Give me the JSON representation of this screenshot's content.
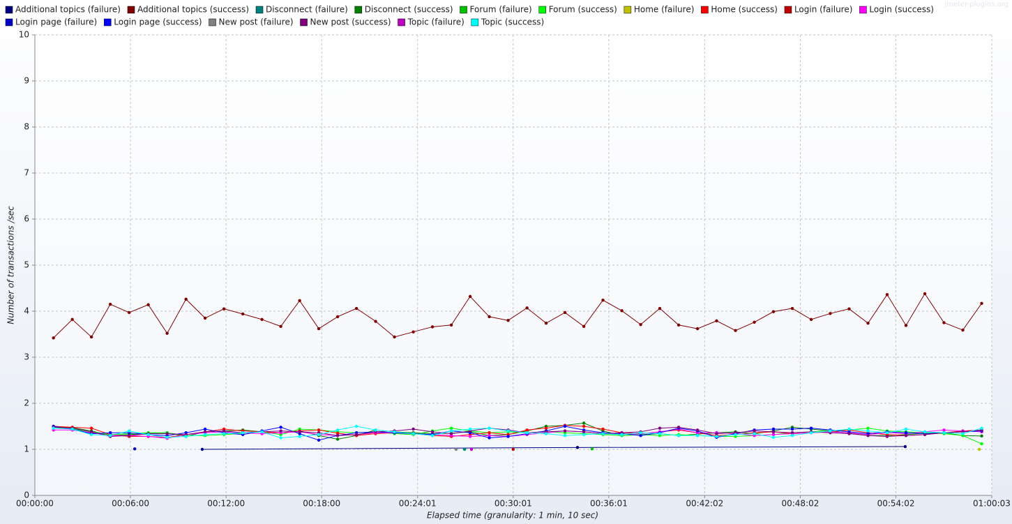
{
  "chart_data": {
    "type": "line",
    "watermark": "jmeter-plugins.org",
    "x_label": "Elapsed time (granularity: 1 min, 10 sec)",
    "y_label": "Number of transactions /sec",
    "xlim": [
      0,
      3603
    ],
    "ylim": [
      0,
      10
    ],
    "xticks": [
      {
        "value": 0,
        "label": "00:00:00"
      },
      {
        "value": 360,
        "label": "00:06:00"
      },
      {
        "value": 720,
        "label": "00:12:00"
      },
      {
        "value": 1080,
        "label": "00:18:00"
      },
      {
        "value": 1441,
        "label": "00:24:01"
      },
      {
        "value": 1801,
        "label": "00:30:01"
      },
      {
        "value": 2161,
        "label": "00:36:01"
      },
      {
        "value": 2522,
        "label": "00:42:02"
      },
      {
        "value": 2882,
        "label": "00:48:02"
      },
      {
        "value": 3242,
        "label": "00:54:02"
      },
      {
        "value": 3603,
        "label": "01:00:03"
      }
    ],
    "yticks": [
      0,
      1,
      2,
      3,
      4,
      5,
      6,
      7,
      8,
      9,
      10
    ],
    "grid": true,
    "x": [
      70,
      141,
      213,
      284,
      355,
      427,
      498,
      569,
      641,
      712,
      783,
      855,
      926,
      997,
      1069,
      1140,
      1211,
      1283,
      1354,
      1425,
      1497,
      1568,
      1639,
      1711,
      1782,
      1853,
      1925,
      1996,
      2067,
      2139,
      2210,
      2281,
      2353,
      2424,
      2495,
      2567,
      2638,
      2709,
      2781,
      2852,
      2923,
      2995,
      3066,
      3137,
      3209,
      3280,
      3351,
      3423,
      3494,
      3565
    ],
    "series": [
      {
        "name": "Additional topics (failure)",
        "color": "#00007f",
        "x": [
          630,
          2043,
          3277
        ],
        "values": [
          1.0,
          1.04,
          1.06
        ]
      },
      {
        "name": "Additional topics (success)",
        "color": "#7f0000",
        "values": [
          3.42,
          3.82,
          3.44,
          4.15,
          3.97,
          4.14,
          3.52,
          4.26,
          3.85,
          4.05,
          3.94,
          3.82,
          3.67,
          4.23,
          3.62,
          3.88,
          4.06,
          3.78,
          3.44,
          3.55,
          3.66,
          3.7,
          4.32,
          3.88,
          3.8,
          4.07,
          3.74,
          3.97,
          3.67,
          4.24,
          4.01,
          3.71,
          4.06,
          3.7,
          3.62,
          3.79,
          3.58,
          3.76,
          3.99,
          4.06,
          3.82,
          3.95,
          4.05,
          3.74,
          4.36,
          3.69,
          4.38,
          3.75,
          3.59,
          4.17
        ]
      },
      {
        "name": "Disconnect (failure)",
        "color": "#007f7f",
        "x": [
          1618
        ],
        "values": [
          1.0
        ]
      },
      {
        "name": "Disconnect (success)",
        "color": "#007f00",
        "values": [
          1.5,
          1.47,
          1.4,
          1.3,
          1.32,
          1.35,
          1.36,
          1.28,
          1.38,
          1.4,
          1.42,
          1.38,
          1.36,
          1.4,
          1.3,
          1.22,
          1.3,
          1.42,
          1.38,
          1.36,
          1.34,
          1.35,
          1.38,
          1.3,
          1.32,
          1.4,
          1.5,
          1.52,
          1.57,
          1.4,
          1.3,
          1.32,
          1.34,
          1.3,
          1.33,
          1.36,
          1.38,
          1.34,
          1.4,
          1.48,
          1.44,
          1.4,
          1.35,
          1.3,
          1.3,
          1.32,
          1.35,
          1.36,
          1.3,
          1.29
        ]
      },
      {
        "name": "Forum (failure)",
        "color": "#00c000",
        "x": [
          2098
        ],
        "values": [
          1.01
        ]
      },
      {
        "name": "Forum (success)",
        "color": "#00ff00",
        "values": [
          1.48,
          1.44,
          1.38,
          1.32,
          1.34,
          1.36,
          1.36,
          1.3,
          1.3,
          1.32,
          1.35,
          1.38,
          1.32,
          1.44,
          1.42,
          1.38,
          1.36,
          1.38,
          1.34,
          1.32,
          1.4,
          1.46,
          1.4,
          1.36,
          1.38,
          1.36,
          1.38,
          1.36,
          1.34,
          1.32,
          1.3,
          1.32,
          1.3,
          1.32,
          1.3,
          1.28,
          1.28,
          1.3,
          1.32,
          1.36,
          1.38,
          1.4,
          1.42,
          1.46,
          1.4,
          1.38,
          1.36,
          1.34,
          1.3,
          1.12
        ]
      },
      {
        "name": "Home (failure)",
        "color": "#c0c000",
        "x": [
          3556
        ],
        "values": [
          1.0
        ]
      },
      {
        "name": "Home (success)",
        "color": "#ff0000",
        "values": [
          1.5,
          1.48,
          1.46,
          1.32,
          1.28,
          1.28,
          1.26,
          1.32,
          1.38,
          1.44,
          1.4,
          1.38,
          1.36,
          1.4,
          1.42,
          1.35,
          1.3,
          1.34,
          1.36,
          1.34,
          1.3,
          1.28,
          1.32,
          1.36,
          1.32,
          1.42,
          1.46,
          1.52,
          1.5,
          1.44,
          1.36,
          1.34,
          1.38,
          1.42,
          1.36,
          1.3,
          1.32,
          1.36,
          1.38,
          1.34,
          1.36,
          1.38,
          1.42,
          1.36,
          1.32,
          1.3,
          1.32,
          1.36,
          1.4,
          1.42
        ]
      },
      {
        "name": "Login (failure)",
        "color": "#c00000",
        "x": [
          1801
        ],
        "values": [
          1.0
        ]
      },
      {
        "name": "Login (success)",
        "color": "#ff00ff",
        "values": [
          1.42,
          1.42,
          1.36,
          1.3,
          1.3,
          1.28,
          1.24,
          1.32,
          1.36,
          1.38,
          1.36,
          1.34,
          1.36,
          1.38,
          1.32,
          1.3,
          1.32,
          1.36,
          1.36,
          1.34,
          1.32,
          1.3,
          1.28,
          1.3,
          1.28,
          1.32,
          1.36,
          1.4,
          1.38,
          1.34,
          1.32,
          1.34,
          1.38,
          1.44,
          1.36,
          1.36,
          1.34,
          1.3,
          1.32,
          1.34,
          1.36,
          1.38,
          1.36,
          1.32,
          1.36,
          1.34,
          1.38,
          1.42,
          1.4,
          1.38
        ]
      },
      {
        "name": "Login page (failure)",
        "color": "#0000c0",
        "x": [
          376
        ],
        "values": [
          1.01
        ]
      },
      {
        "name": "Login page (success)",
        "color": "#0000ff",
        "values": [
          1.5,
          1.44,
          1.34,
          1.36,
          1.36,
          1.32,
          1.3,
          1.36,
          1.44,
          1.36,
          1.32,
          1.4,
          1.48,
          1.34,
          1.2,
          1.3,
          1.36,
          1.38,
          1.36,
          1.34,
          1.32,
          1.4,
          1.36,
          1.25,
          1.28,
          1.34,
          1.4,
          1.5,
          1.42,
          1.36,
          1.34,
          1.3,
          1.36,
          1.46,
          1.4,
          1.26,
          1.34,
          1.42,
          1.44,
          1.44,
          1.46,
          1.42,
          1.38,
          1.34,
          1.38,
          1.36,
          1.34,
          1.36,
          1.38,
          1.4
        ]
      },
      {
        "name": "New post (failure)",
        "color": "#808080",
        "x": [
          1586
        ],
        "values": [
          1.0
        ]
      },
      {
        "name": "New post (success)",
        "color": "#800080",
        "values": [
          1.48,
          1.46,
          1.38,
          1.28,
          1.3,
          1.34,
          1.34,
          1.32,
          1.38,
          1.4,
          1.36,
          1.38,
          1.4,
          1.38,
          1.36,
          1.3,
          1.32,
          1.38,
          1.4,
          1.44,
          1.38,
          1.34,
          1.4,
          1.46,
          1.42,
          1.36,
          1.38,
          1.4,
          1.38,
          1.34,
          1.36,
          1.38,
          1.46,
          1.48,
          1.42,
          1.34,
          1.36,
          1.4,
          1.38,
          1.36,
          1.38,
          1.36,
          1.34,
          1.3,
          1.28,
          1.3,
          1.32,
          1.36,
          1.38,
          1.42
        ]
      },
      {
        "name": "Topic (failure)",
        "color": "#c000c0",
        "x": [
          1644
        ],
        "values": [
          1.0
        ]
      },
      {
        "name": "Topic (success)",
        "color": "#00ffff",
        "values": [
          1.46,
          1.44,
          1.32,
          1.3,
          1.4,
          1.32,
          1.26,
          1.28,
          1.32,
          1.34,
          1.36,
          1.38,
          1.25,
          1.28,
          1.32,
          1.42,
          1.5,
          1.42,
          1.38,
          1.34,
          1.3,
          1.4,
          1.44,
          1.46,
          1.4,
          1.36,
          1.34,
          1.3,
          1.32,
          1.34,
          1.32,
          1.36,
          1.34,
          1.3,
          1.3,
          1.28,
          1.32,
          1.34,
          1.26,
          1.3,
          1.36,
          1.4,
          1.44,
          1.4,
          1.36,
          1.44,
          1.38,
          1.36,
          1.34,
          1.46
        ]
      }
    ]
  }
}
